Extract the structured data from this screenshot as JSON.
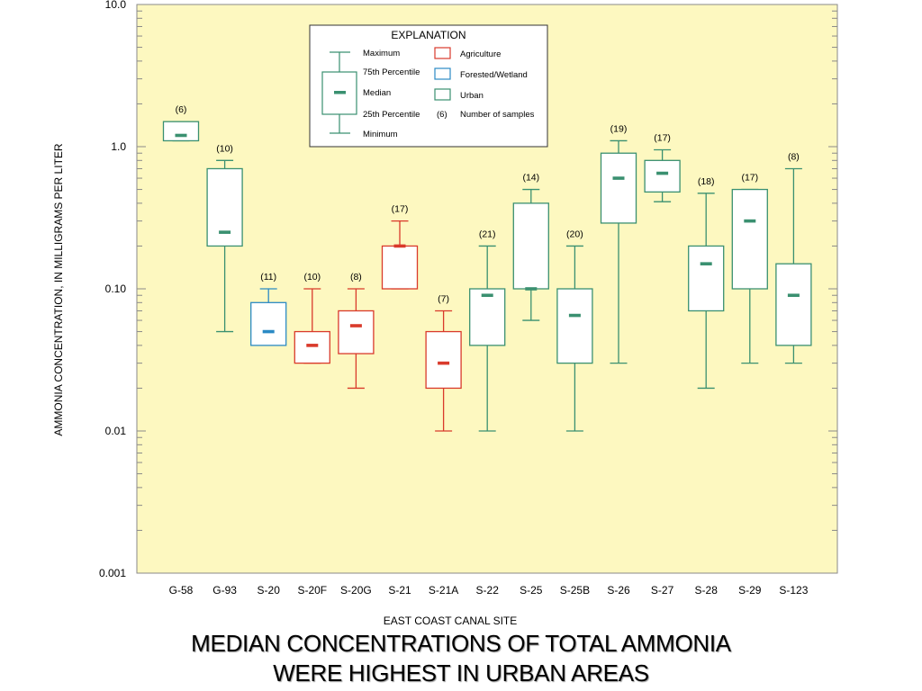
{
  "chart_data": {
    "type": "boxplot",
    "title": "",
    "xlabel": "EAST COAST CANAL SITE",
    "ylabel": "AMMONIA  CONCENTRATION, IN MILLIGRAMS PER LITER",
    "yscale": "log",
    "ylim": [
      0.001,
      10
    ],
    "yticks": [
      {
        "value": 10,
        "label": "10.0"
      },
      {
        "value": 1,
        "label": "1.0"
      },
      {
        "value": 0.1,
        "label": "0.10"
      },
      {
        "value": 0.01,
        "label": "0.01"
      },
      {
        "value": 0.001,
        "label": "0.001"
      }
    ],
    "plot_background": "#fdf8c0",
    "colors": {
      "Agriculture": "#d93a2b",
      "Forested/Wetland": "#2b8ac4",
      "Urban": "#3a9070"
    },
    "sites": [
      {
        "name": "G-58",
        "group": "Urban",
        "n": "(6)",
        "min": 1.1,
        "q1": 1.1,
        "median": 1.2,
        "q3": 1.5,
        "max": 1.5
      },
      {
        "name": "G-93",
        "group": "Urban",
        "n": "(10)",
        "min": 0.05,
        "q1": 0.2,
        "median": 0.25,
        "q3": 0.7,
        "max": 0.8
      },
      {
        "name": "S-20",
        "group": "Forested/Wetland",
        "n": "(11)",
        "min": 0.04,
        "q1": 0.04,
        "median": 0.05,
        "q3": 0.08,
        "max": 0.1
      },
      {
        "name": "S-20F",
        "group": "Agriculture",
        "n": "(10)",
        "min": 0.03,
        "q1": 0.03,
        "median": 0.04,
        "q3": 0.05,
        "max": 0.1
      },
      {
        "name": "S-20G",
        "group": "Agriculture",
        "n": "(8)",
        "min": 0.02,
        "q1": 0.035,
        "median": 0.055,
        "q3": 0.07,
        "max": 0.1
      },
      {
        "name": "S-21",
        "group": "Agriculture",
        "n": "(17)",
        "min": 0.1,
        "q1": 0.1,
        "median": 0.2,
        "q3": 0.2,
        "max": 0.3
      },
      {
        "name": "S-21A",
        "group": "Agriculture",
        "n": "(7)",
        "min": 0.01,
        "q1": 0.02,
        "median": 0.03,
        "q3": 0.05,
        "max": 0.07
      },
      {
        "name": "S-22",
        "group": "Urban",
        "n": "(21)",
        "min": 0.01,
        "q1": 0.04,
        "median": 0.09,
        "q3": 0.1,
        "max": 0.2
      },
      {
        "name": "S-25",
        "group": "Urban",
        "n": "(14)",
        "min": 0.06,
        "q1": 0.1,
        "median": 0.1,
        "q3": 0.4,
        "max": 0.5
      },
      {
        "name": "S-25B",
        "group": "Urban",
        "n": "(20)",
        "min": 0.01,
        "q1": 0.03,
        "median": 0.065,
        "q3": 0.1,
        "max": 0.2
      },
      {
        "name": "S-26",
        "group": "Urban",
        "n": "(19)",
        "min": 0.03,
        "q1": 0.29,
        "median": 0.6,
        "q3": 0.9,
        "max": 1.1
      },
      {
        "name": "S-27",
        "group": "Urban",
        "n": "(17)",
        "min": 0.41,
        "q1": 0.48,
        "median": 0.65,
        "q3": 0.8,
        "max": 0.95
      },
      {
        "name": "S-28",
        "group": "Urban",
        "n": "(18)",
        "min": 0.02,
        "q1": 0.07,
        "median": 0.15,
        "q3": 0.2,
        "max": 0.47
      },
      {
        "name": "S-29",
        "group": "Urban",
        "n": "(17)",
        "min": 0.03,
        "q1": 0.1,
        "median": 0.3,
        "q3": 0.5,
        "max": 0.5
      },
      {
        "name": "S-123",
        "group": "Urban",
        "n": "(8)",
        "min": 0.03,
        "q1": 0.04,
        "median": 0.09,
        "q3": 0.15,
        "max": 0.7
      }
    ],
    "legend": {
      "title": "EXPLANATION",
      "box_labels": [
        "Maximum",
        "75th Percentile",
        "Median",
        "25th Percentile",
        "Minimum"
      ],
      "groups": [
        "Agriculture",
        "Forested/Wetland",
        "Urban"
      ],
      "count_symbol": "(6)",
      "count_label": "Number of samples"
    }
  },
  "caption": {
    "line1": "MEDIAN CONCENTRATIONS OF TOTAL AMMONIA",
    "line2": "WERE HIGHEST IN URBAN AREAS"
  }
}
